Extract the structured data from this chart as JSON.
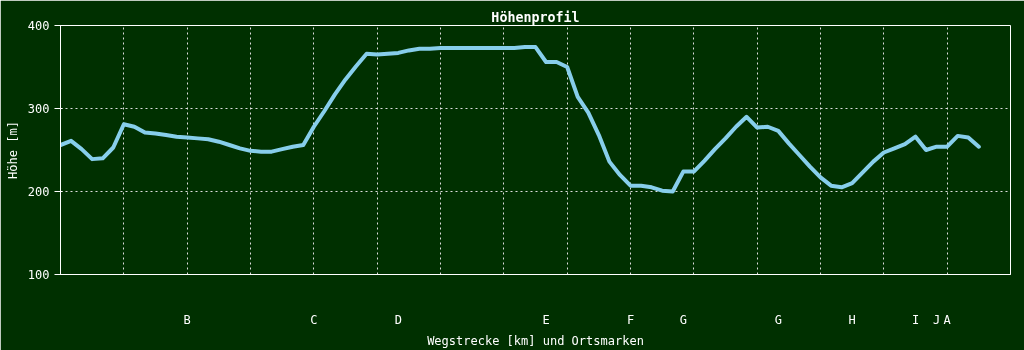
{
  "chart_data": {
    "type": "line",
    "title": "Höhenprofil",
    "xlabel": "Wegstrecke [km] und Ortsmarken",
    "ylabel": "Höhe [m]",
    "categories": [
      null,
      null,
      null,
      null,
      null,
      null,
      null,
      null,
      null,
      null,
      null,
      null,
      "B",
      null,
      null,
      null,
      null,
      null,
      null,
      null,
      null,
      null,
      null,
      null,
      "C",
      null,
      null,
      null,
      null,
      null,
      null,
      null,
      "D",
      null,
      null,
      null,
      null,
      null,
      null,
      null,
      null,
      null,
      null,
      null,
      null,
      null,
      "E",
      null,
      null,
      null,
      null,
      null,
      null,
      null,
      "F",
      null,
      null,
      null,
      null,
      "G",
      null,
      null,
      null,
      null,
      null,
      null,
      null,
      null,
      "G",
      null,
      null,
      null,
      null,
      null,
      null,
      "H",
      null,
      null,
      null,
      null,
      null,
      "I",
      null,
      "J",
      "A",
      null,
      null,
      null,
      null,
      null,
      null
    ],
    "series": [
      {
        "color": "#87ceeb",
        "values": [
          256,
          261,
          251,
          239,
          240,
          253,
          281,
          278,
          271,
          270,
          268,
          266,
          265,
          264,
          263,
          260,
          256,
          252,
          249,
          248,
          248,
          251,
          254,
          256,
          278,
          297,
          317,
          335,
          351,
          366,
          365,
          366,
          367,
          370,
          372,
          372,
          373,
          373,
          373,
          373,
          373,
          373,
          373,
          373,
          374,
          374,
          356,
          356,
          350,
          314,
          295,
          268,
          236,
          220,
          207,
          207,
          205,
          201,
          200,
          224,
          224,
          237,
          251,
          264,
          278,
          290,
          277,
          278,
          273,
          258,
          244,
          230,
          217,
          207,
          205,
          210,
          223,
          236,
          247,
          252,
          257,
          266,
          250,
          254,
          254,
          267,
          265,
          254,
          null,
          null,
          null
        ]
      }
    ],
    "ylim": [
      100,
      400
    ],
    "yticks": [
      100,
      200,
      300,
      400
    ],
    "grid": true
  }
}
